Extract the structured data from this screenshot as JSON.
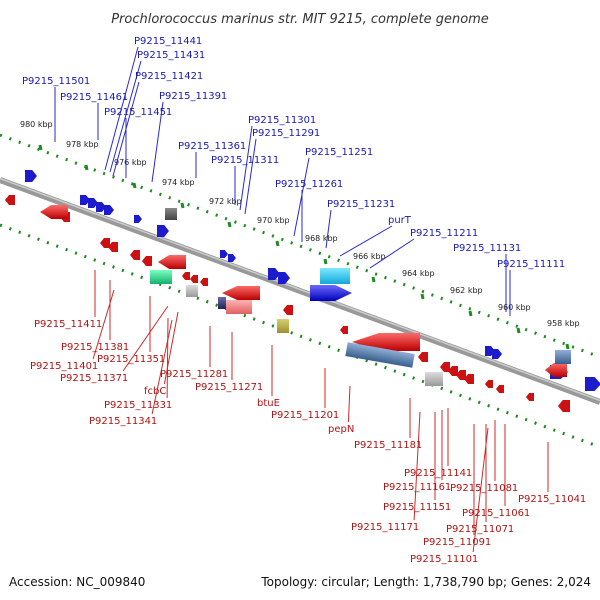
{
  "title": "Prochlorococcus marinus str. MIT 9215, complete genome",
  "footer": {
    "accession": "Accession: NC_009840",
    "summary": "Topology: circular; Length: 1,738,790 bp; Genes: 2,024"
  },
  "colors": {
    "forward": "#1c1ccc",
    "reverse": "#cc1111",
    "backbone": "#888888",
    "ruler": "#1f8a1f"
  },
  "kbp_ticks": [
    "980 kbp",
    "978 kbp",
    "976 kbp",
    "974 kbp",
    "972 kbp",
    "970 kbp",
    "968 kbp",
    "966 kbp",
    "964 kbp",
    "962 kbp",
    "960 kbp",
    "958 kbp"
  ],
  "upper_labels": [
    "P9215_11441",
    "P9215_11431",
    "P9215_11421",
    "P9215_11501",
    "P9215_11461",
    "P9215_11451",
    "P9215_11391",
    "P9215_11301",
    "P9215_11291",
    "P9215_11361",
    "P9215_11311",
    "P9215_11251",
    "P9215_11261",
    "P9215_11231",
    "purT",
    "P9215_11211",
    "P9215_11131",
    "P9215_11111"
  ],
  "lower_labels": [
    "P9215_11411",
    "P9215_11381",
    "P9215_11401",
    "P9215_11351",
    "P9215_11371",
    "fcbC",
    "P9215_11331",
    "P9215_11341",
    "P9215_11281",
    "P9215_11271",
    "btuE",
    "P9215_11201",
    "pepN",
    "P9215_11181",
    "P9215_11141",
    "P9215_11161",
    "P9215_11081",
    "P9215_11151",
    "P9215_11061",
    "P9215_11041",
    "P9215_11171",
    "P9215_11071",
    "P9215_11091",
    "P9215_11101"
  ]
}
